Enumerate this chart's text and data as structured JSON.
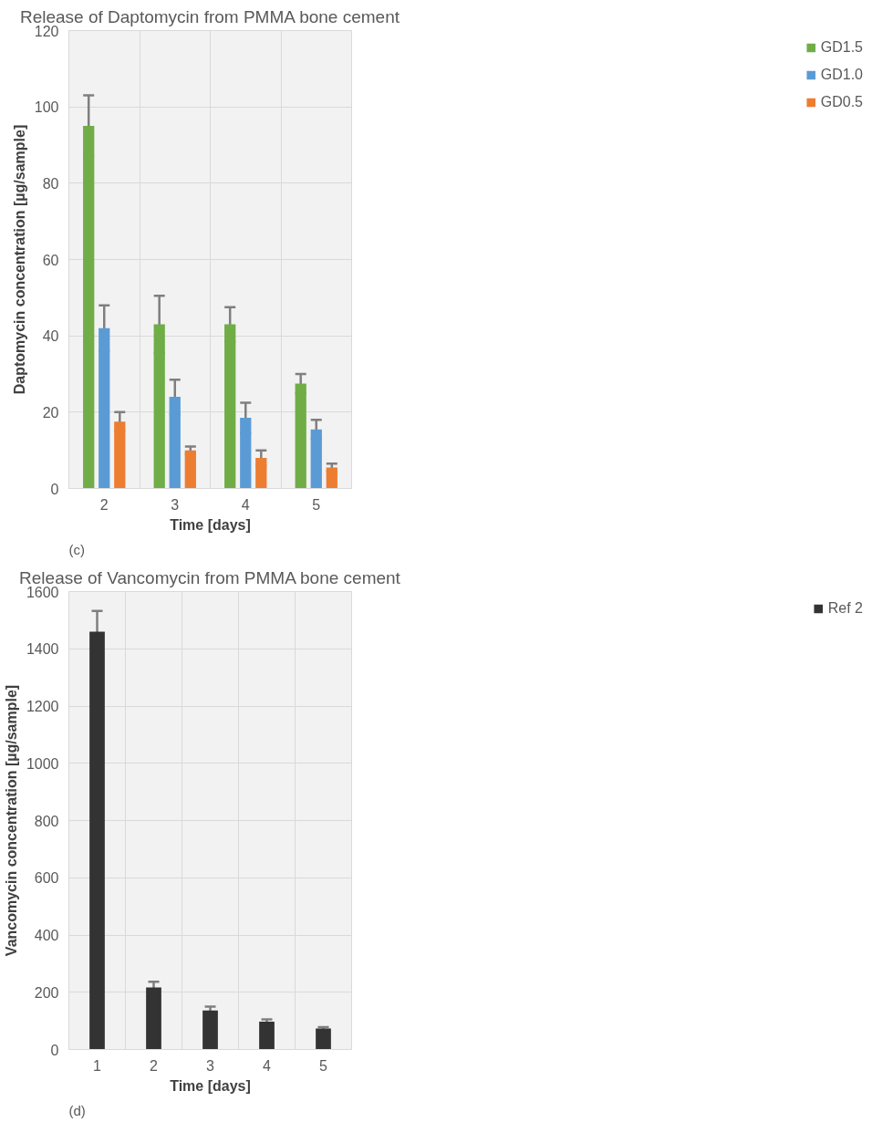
{
  "chart_data": [
    {
      "type": "bar",
      "title": "Release of Daptomycin from PMMA bone cement",
      "xlabel": "Time [days]",
      "ylabel": "Daptomycin concentration [µg/sample]",
      "annotations": [
        "(c)"
      ],
      "categories": [
        "2",
        "3",
        "4",
        "5"
      ],
      "series": [
        {
          "name": "GD1.5",
          "color": "#70ad47",
          "values": [
            95,
            43,
            43,
            27.5
          ],
          "errors": [
            8,
            7.5,
            4.5,
            2.5
          ]
        },
        {
          "name": "GD1.0",
          "color": "#5b9bd5",
          "values": [
            42,
            24,
            18.5,
            15.5
          ],
          "errors": [
            6,
            4.5,
            4,
            2.5
          ]
        },
        {
          "name": "GD0.5",
          "color": "#ed7d31",
          "values": [
            17.5,
            10,
            8,
            5.5
          ],
          "errors": [
            2.5,
            1,
            2,
            1
          ]
        }
      ],
      "ylim": [
        0,
        120
      ],
      "yticks": [
        0,
        20,
        40,
        60,
        80,
        100,
        120
      ],
      "grid": true,
      "legend": "right"
    },
    {
      "type": "bar",
      "title": "Release of Vancomycin from PMMA bone cement",
      "xlabel": "Time [days]",
      "ylabel": "Vancomycin concentration [µg/sample]",
      "annotations": [
        "(d)"
      ],
      "categories": [
        "1",
        "2",
        "3",
        "4",
        "5"
      ],
      "series": [
        {
          "name": "Ref 2",
          "color": "#333333",
          "values": [
            1460,
            217,
            136,
            97,
            73
          ],
          "errors": [
            72,
            20,
            14,
            8,
            5
          ]
        }
      ],
      "ylim": [
        0,
        1600
      ],
      "yticks": [
        0,
        200,
        400,
        600,
        800,
        1000,
        1200,
        1400,
        1600
      ],
      "grid": true,
      "legend": "right"
    }
  ]
}
